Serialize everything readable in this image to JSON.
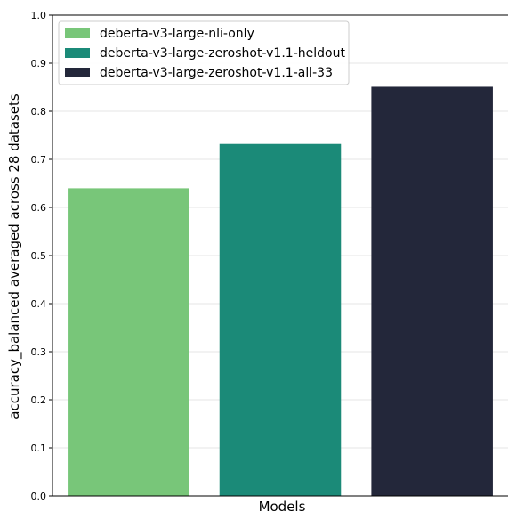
{
  "chart_data": {
    "type": "bar",
    "categories": [
      "deberta-v3-large-nli-only",
      "deberta-v3-large-zeroshot-v1.1-heldout",
      "deberta-v3-large-zeroshot-v1.1-all-33"
    ],
    "values": [
      0.64,
      0.732,
      0.851
    ],
    "colors": [
      "#78c679",
      "#1b8a78",
      "#23273a"
    ],
    "xlabel": "Models",
    "ylabel": "accuracy_balanced averaged across 28 datasets",
    "ylim": [
      0,
      1.0
    ],
    "yticks": [
      "0.0",
      "0.1",
      "0.2",
      "0.3",
      "0.4",
      "0.5",
      "0.6",
      "0.7",
      "0.8",
      "0.9",
      "1.0"
    ],
    "grid": "horizontal",
    "legend_position": "top-left"
  }
}
